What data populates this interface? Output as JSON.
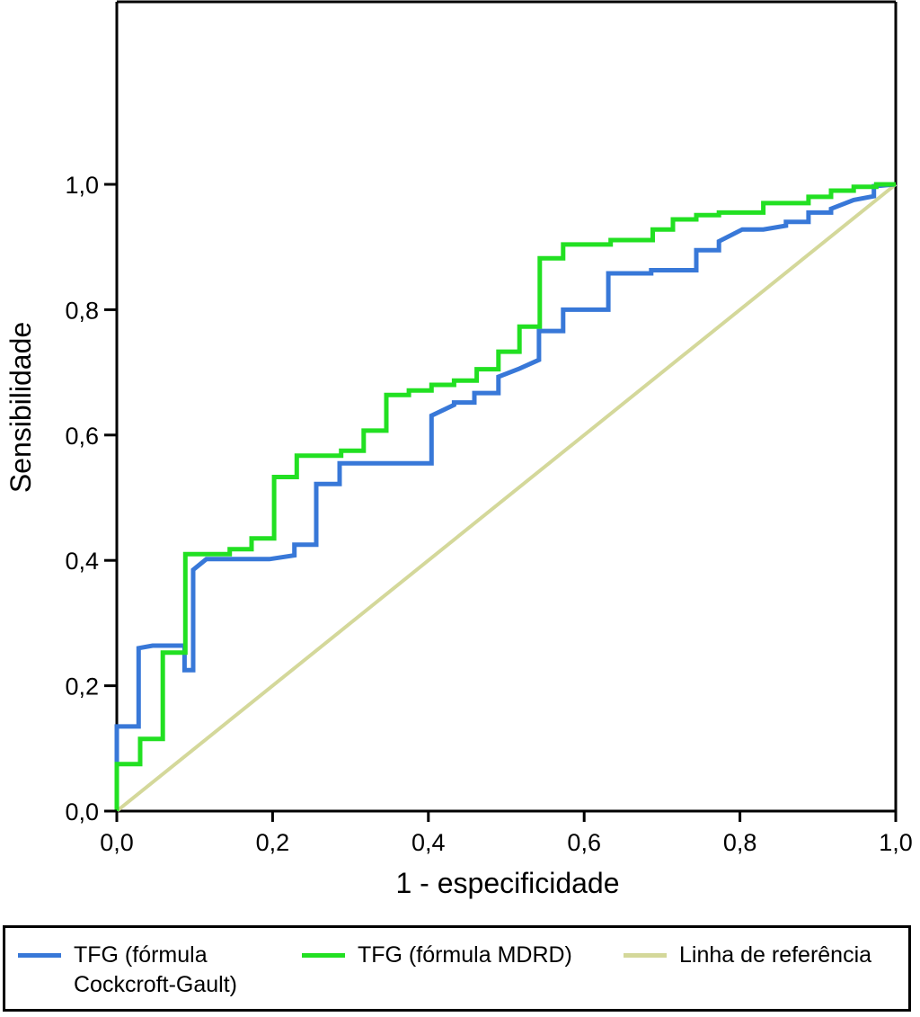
{
  "chart_data": {
    "type": "line",
    "title": "",
    "xlabel": "1 - especificidade",
    "ylabel": "Sensibilidade",
    "xlim": [
      0.0,
      1.0
    ],
    "ylim": [
      0.0,
      1.0
    ],
    "xticks": [
      0.0,
      0.2,
      0.4,
      0.6,
      0.8,
      1.0
    ],
    "yticks": [
      0.0,
      0.2,
      0.4,
      0.6,
      0.8,
      1.0
    ],
    "xtick_labels": [
      "0,0",
      "0,2",
      "0,4",
      "0,6",
      "0,8",
      "1,0"
    ],
    "ytick_labels": [
      "0,0",
      "0,2",
      "0,4",
      "0,6",
      "0,8",
      "1,0"
    ],
    "grid": false,
    "legend_position": "bottom",
    "series": [
      {
        "name": "TFG (fórmula Cockcroft-Gault)",
        "legend_label": "TFG (fórmula\nCockcroft-Gault)",
        "color": "#3878d8",
        "x": [
          0.0,
          0.0,
          0.028,
          0.028,
          0.046,
          0.087,
          0.087,
          0.098,
          0.098,
          0.115,
          0.196,
          0.228,
          0.228,
          0.256,
          0.256,
          0.286,
          0.286,
          0.404,
          0.404,
          0.433,
          0.433,
          0.459,
          0.459,
          0.49,
          0.49,
          0.517,
          0.542,
          0.542,
          0.573,
          0.573,
          0.631,
          0.631,
          0.686,
          0.686,
          0.744,
          0.744,
          0.773,
          0.773,
          0.803,
          0.83,
          0.859,
          0.859,
          0.888,
          0.888,
          0.917,
          0.917,
          0.946,
          0.972,
          0.972,
          1.0
        ],
        "y": [
          0.0,
          0.135,
          0.135,
          0.26,
          0.264,
          0.264,
          0.225,
          0.225,
          0.385,
          0.402,
          0.402,
          0.408,
          0.425,
          0.425,
          0.522,
          0.522,
          0.555,
          0.555,
          0.631,
          0.648,
          0.652,
          0.652,
          0.667,
          0.667,
          0.693,
          0.706,
          0.72,
          0.766,
          0.766,
          0.8,
          0.8,
          0.858,
          0.858,
          0.863,
          0.863,
          0.895,
          0.895,
          0.909,
          0.928,
          0.928,
          0.934,
          0.94,
          0.94,
          0.955,
          0.955,
          0.961,
          0.975,
          0.981,
          0.997,
          1.0
        ]
      },
      {
        "name": "TFG (fórmula MDRD)",
        "legend_label": "TFG (fórmula MDRD)",
        "color": "#22e022",
        "x": [
          0.0,
          0.0,
          0.03,
          0.03,
          0.059,
          0.059,
          0.088,
          0.088,
          0.145,
          0.145,
          0.173,
          0.173,
          0.202,
          0.202,
          0.231,
          0.231,
          0.288,
          0.288,
          0.317,
          0.317,
          0.346,
          0.346,
          0.375,
          0.375,
          0.404,
          0.404,
          0.433,
          0.433,
          0.462,
          0.462,
          0.49,
          0.49,
          0.517,
          0.517,
          0.543,
          0.543,
          0.573,
          0.573,
          0.634,
          0.634,
          0.688,
          0.688,
          0.714,
          0.714,
          0.744,
          0.744,
          0.773,
          0.773,
          0.83,
          0.83,
          0.888,
          0.888,
          0.917,
          0.917,
          0.946,
          0.946,
          0.975,
          0.975,
          1.0
        ],
        "y": [
          0.0,
          0.075,
          0.075,
          0.115,
          0.115,
          0.253,
          0.253,
          0.41,
          0.41,
          0.418,
          0.418,
          0.435,
          0.435,
          0.533,
          0.533,
          0.567,
          0.567,
          0.575,
          0.575,
          0.607,
          0.607,
          0.664,
          0.664,
          0.671,
          0.671,
          0.68,
          0.68,
          0.687,
          0.687,
          0.705,
          0.705,
          0.733,
          0.733,
          0.773,
          0.773,
          0.882,
          0.882,
          0.904,
          0.904,
          0.911,
          0.911,
          0.928,
          0.928,
          0.944,
          0.944,
          0.951,
          0.951,
          0.955,
          0.955,
          0.97,
          0.97,
          0.98,
          0.98,
          0.99,
          0.99,
          0.996,
          0.996,
          1.0,
          1.0
        ]
      },
      {
        "name": "Linha de referência",
        "legend_label": "Linha de referência",
        "color": "#d4d89a",
        "x": [
          0.0,
          1.0
        ],
        "y": [
          0.0,
          1.0
        ]
      }
    ]
  }
}
